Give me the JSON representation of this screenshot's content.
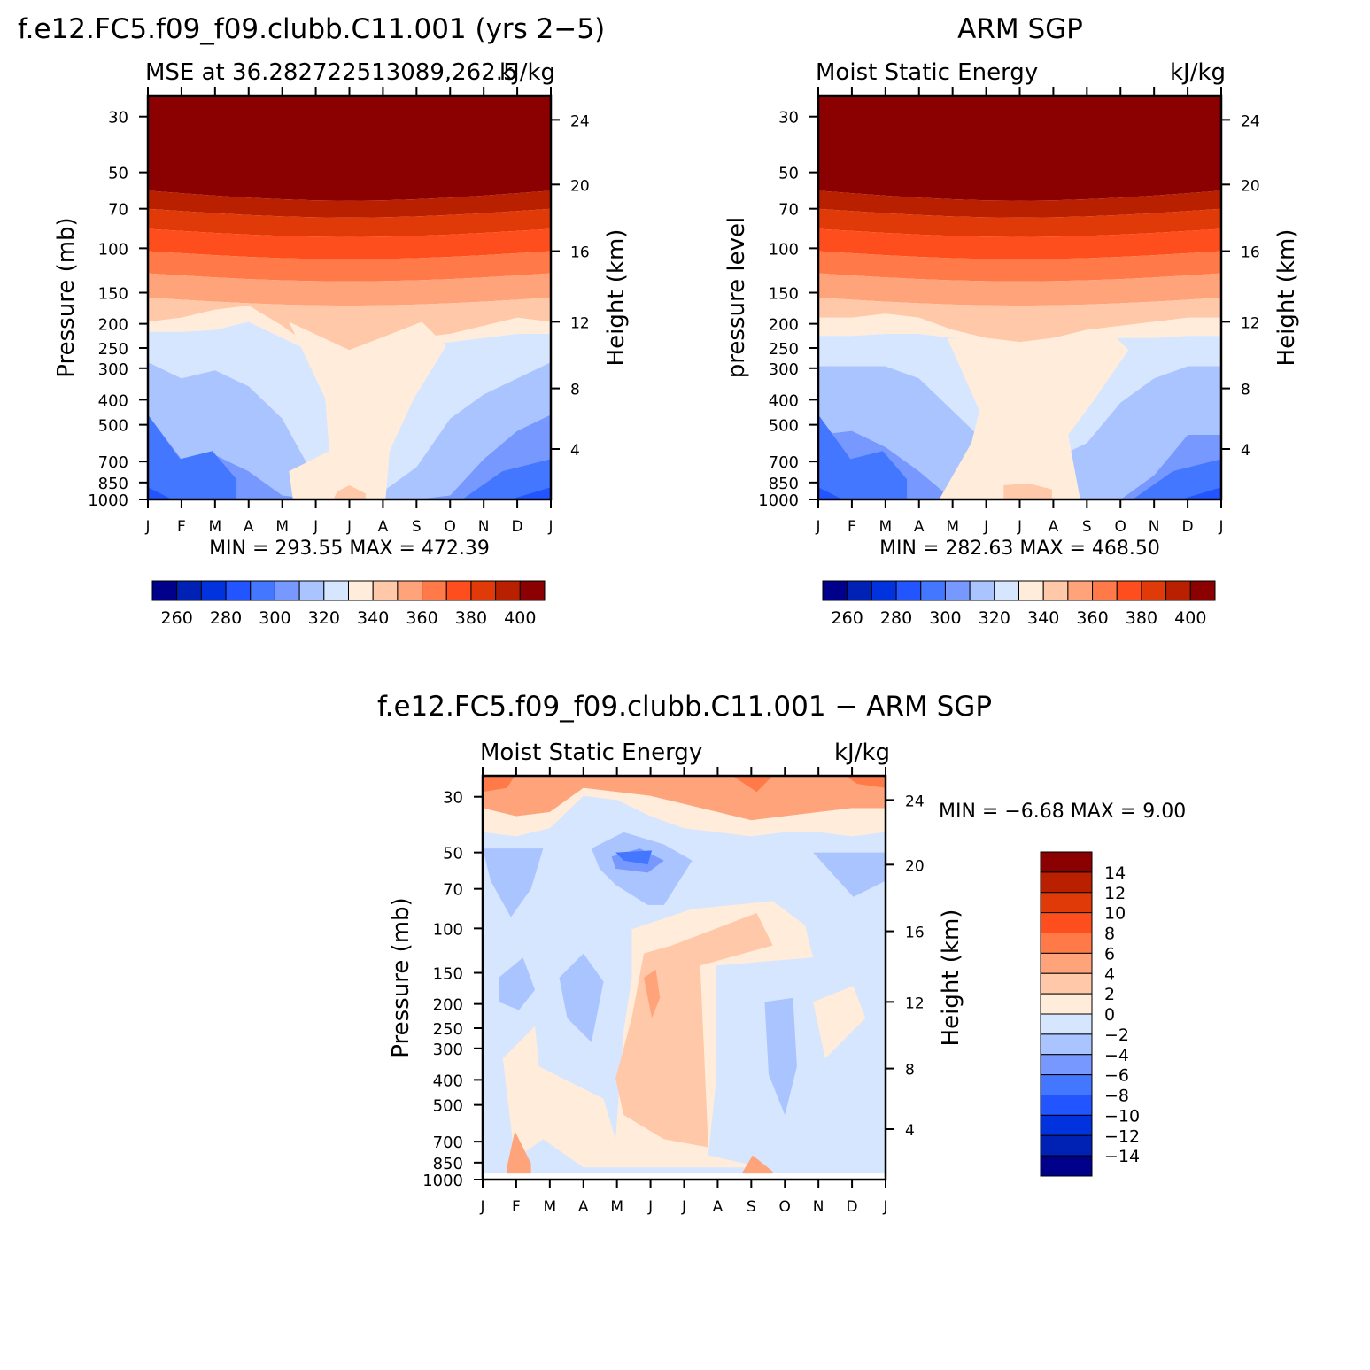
{
  "page": {
    "title_model": "f.e12.FC5.f09_f09.clubb.C11.001 (yrs 2−5)",
    "title_obs": "ARM SGP",
    "title_diff": "f.e12.FC5.f09_f09.clubb.C11.001 − ARM SGP"
  },
  "chart_data": [
    {
      "id": "model",
      "type": "heatmap",
      "subtitle_left": "MSE at 36.282722513089,262.5",
      "subtitle_right": "kJ/kg",
      "ylabel": "Pressure (mb)",
      "ylabel_right": "Height (km)",
      "x_ticks": [
        "J",
        "F",
        "M",
        "A",
        "M",
        "J",
        "J",
        "A",
        "S",
        "O",
        "N",
        "D",
        "J"
      ],
      "y_ticks": [
        "30",
        "50",
        "70",
        "100",
        "150",
        "200",
        "250",
        "300",
        "400",
        "500",
        "700",
        "850",
        "1000"
      ],
      "height_ticks": [
        "24",
        "20",
        "16",
        "12",
        "8",
        "4"
      ],
      "min_max": "MIN =  293.55  MAX =  472.39",
      "colorbar_labels": [
        "260",
        "280",
        "300",
        "320",
        "340",
        "360",
        "380",
        "400"
      ]
    },
    {
      "id": "obs",
      "type": "heatmap",
      "subtitle_left": "Moist Static Energy",
      "subtitle_right": "kJ/kg",
      "ylabel": "pressure level",
      "ylabel_right": "Height (km)",
      "x_ticks": [
        "J",
        "F",
        "M",
        "A",
        "M",
        "J",
        "J",
        "A",
        "S",
        "O",
        "N",
        "D",
        "J"
      ],
      "y_ticks": [
        "30",
        "50",
        "70",
        "100",
        "150",
        "200",
        "250",
        "300",
        "400",
        "500",
        "700",
        "850",
        "1000"
      ],
      "height_ticks": [
        "24",
        "20",
        "16",
        "12",
        "8",
        "4"
      ],
      "min_max": "MIN =  282.63  MAX =  468.50",
      "colorbar_labels": [
        "260",
        "280",
        "300",
        "320",
        "340",
        "360",
        "380",
        "400"
      ]
    },
    {
      "id": "diff",
      "type": "heatmap",
      "subtitle_left": "Moist Static Energy",
      "subtitle_right": "kJ/kg",
      "ylabel": "Pressure (mb)",
      "ylabel_right": "Height (km)",
      "x_ticks": [
        "J",
        "F",
        "M",
        "A",
        "M",
        "J",
        "J",
        "A",
        "S",
        "O",
        "N",
        "D",
        "J"
      ],
      "y_ticks": [
        "30",
        "50",
        "70",
        "100",
        "150",
        "200",
        "250",
        "300",
        "400",
        "500",
        "700",
        "850",
        "1000"
      ],
      "height_ticks": [
        "24",
        "20",
        "16",
        "12",
        "8",
        "4"
      ],
      "min_max": "MIN =   −6.68  MAX =    9.00",
      "colorbar_labels": [
        "14",
        "12",
        "10",
        "8",
        "6",
        "4",
        "2",
        "0",
        "−2",
        "−4",
        "−6",
        "−8",
        "−10",
        "−12",
        "−14"
      ]
    }
  ],
  "colors": {
    "levels": [
      "#00008b",
      "#0022b4",
      "#0033dd",
      "#2255ff",
      "#4477ff",
      "#7799ff",
      "#aac4ff",
      "#d6e6ff",
      "#ffecda",
      "#ffc8a8",
      "#ffa47a",
      "#ff7a48",
      "#ff4e1e",
      "#e03a08",
      "#b82000",
      "#8b0000"
    ]
  }
}
